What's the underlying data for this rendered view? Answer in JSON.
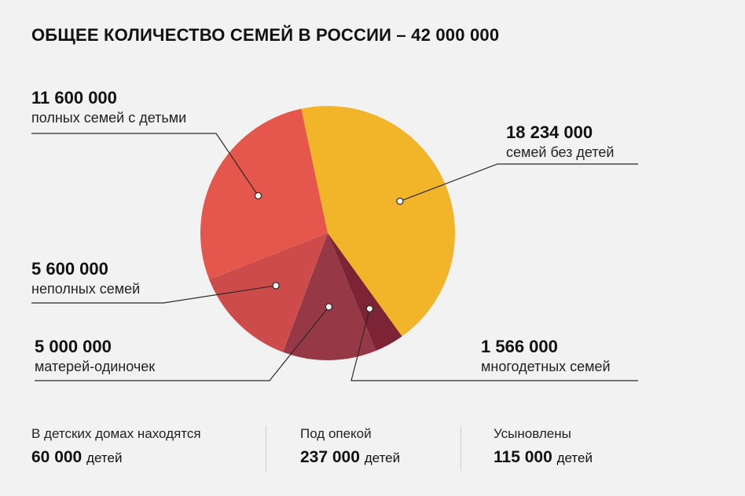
{
  "chart_data": {
    "type": "pie",
    "title": "ОБЩЕЕ КОЛИЧЕСТВО СЕМЕЙ В РОССИИ – 42 000 000",
    "slices": [
      {
        "key": "no_children",
        "value": 18234000,
        "value_label": "18 234 000",
        "label": "семей без детей",
        "color": "#f2b52a"
      },
      {
        "key": "large",
        "value": 1566000,
        "value_label": "1 566 000",
        "label": "многодетных семей",
        "color": "#7c2335"
      },
      {
        "key": "single_mothers",
        "value": 5000000,
        "value_label": "5 000 000",
        "label": "матерей-одиночек",
        "color": "#963845"
      },
      {
        "key": "incomplete",
        "value": 5600000,
        "value_label": "5 600 000",
        "label": "неполных семей",
        "color": "#cd4b4b"
      },
      {
        "key": "full",
        "value": 11600000,
        "value_label": "11 600 000",
        "label": "полных семей с детьми",
        "color": "#e5574c"
      }
    ]
  },
  "stats": [
    {
      "caption": "В детских домах находятся",
      "value": "60 000",
      "unit": "детей"
    },
    {
      "caption": "Под опекой",
      "value": "237 000",
      "unit": "детей"
    },
    {
      "caption": "Усыновлены",
      "value": "115 000",
      "unit": "детей"
    }
  ]
}
